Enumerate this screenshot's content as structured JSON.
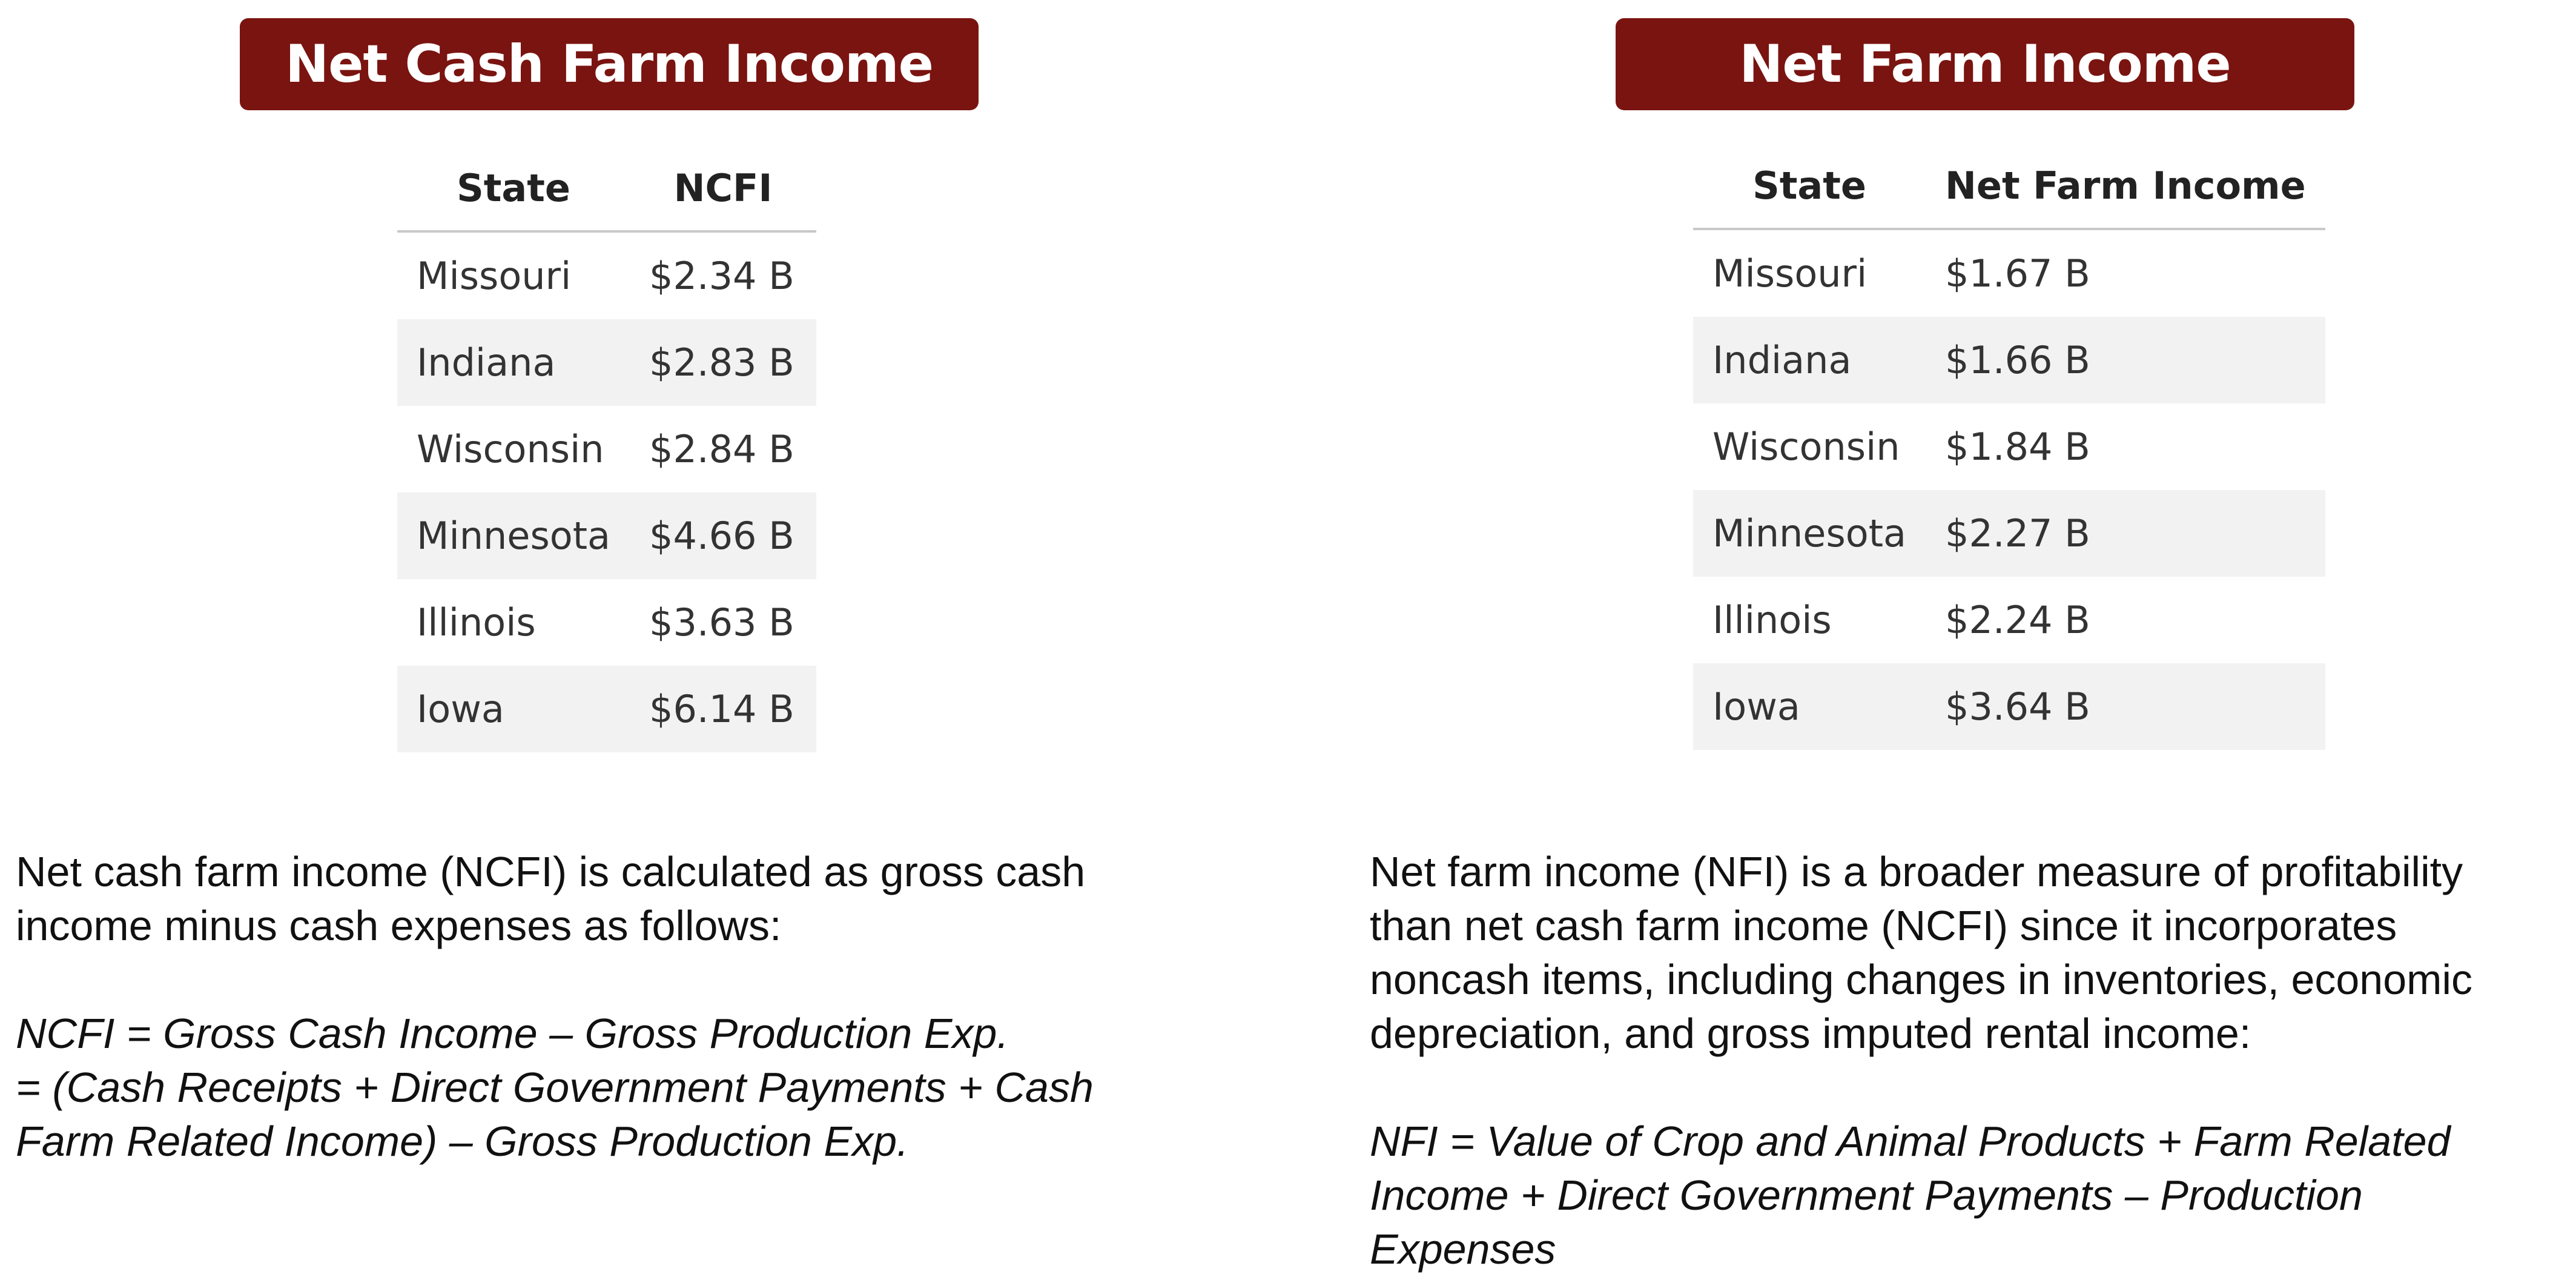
{
  "left": {
    "title": "Net Cash Farm Income",
    "table": {
      "headers": [
        "State",
        "NCFI"
      ],
      "rows": [
        [
          "Missouri",
          "$2.34 B"
        ],
        [
          "Indiana",
          "$2.83 B"
        ],
        [
          "Wisconsin",
          "$2.84 B"
        ],
        [
          "Minnesota",
          "$4.66 B"
        ],
        [
          "Illinois",
          "$3.63 B"
        ],
        [
          "Iowa",
          "$6.14 B"
        ]
      ]
    },
    "description_lines": [
      "Net cash farm income (NCFI) is calculated as gross cash",
      "income minus cash expenses as follows:"
    ],
    "formula_lines": [
      "NCFI = Gross Cash Income – Gross Production Exp.",
      "= (Cash Receipts + Direct Government Payments + Cash",
      "Farm Related Income) – Gross Production Exp."
    ]
  },
  "right": {
    "title": "Net Farm Income",
    "table": {
      "headers": [
        "State",
        "Net Farm Income"
      ],
      "rows": [
        [
          "Missouri",
          "$1.67 B"
        ],
        [
          "Indiana",
          "$1.66 B"
        ],
        [
          "Wisconsin",
          "$1.84 B"
        ],
        [
          "Minnesota",
          "$2.27 B"
        ],
        [
          "Illinois",
          "$2.24 B"
        ],
        [
          "Iowa",
          "$3.64 B"
        ]
      ]
    },
    "description_lines": [
      "Net farm income (NFI) is a broader measure of profitability",
      "than net cash farm income (NCFI) since it incorporates",
      "noncash items, including changes in inventories, economic",
      "depreciation, and gross imputed rental income:"
    ],
    "formula_lines": [
      "NFI = Value of Crop and Animal Products + Farm Related",
      "Income + Direct Government Payments – Production",
      "Expenses"
    ]
  },
  "colors": {
    "banner": "#7a1410",
    "banner_text": "#ffffff",
    "row_stripe": "#f2f2f2"
  }
}
